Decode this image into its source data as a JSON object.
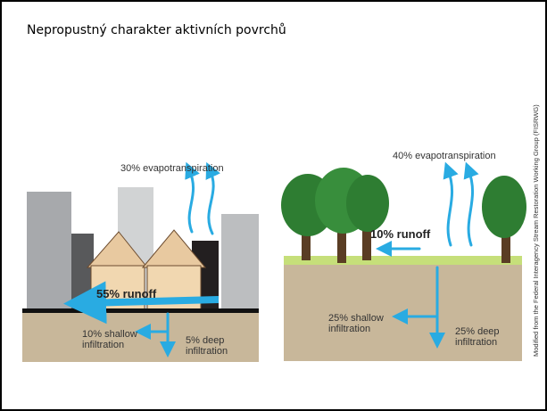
{
  "header": {
    "title": "Nepropustný charakter aktivních povrchů"
  },
  "urban": {
    "evapotranspiration": "30% evapotranspiration",
    "runoff": "55% runoff",
    "shallow_infiltration": [
      "10% shallow",
      "infiltration"
    ],
    "deep_infiltration": [
      "5% deep",
      "infiltration"
    ]
  },
  "natural": {
    "evapotranspiration": "40% evapotranspiration",
    "runoff": "10% runoff",
    "shallow_infiltration": [
      "25% shallow",
      "infiltration"
    ],
    "deep_infiltration": [
      "25% deep",
      "infiltration"
    ]
  },
  "credit": "Modified from the Federal Interagency Stream Restoration Working Group (FISRWG)"
}
